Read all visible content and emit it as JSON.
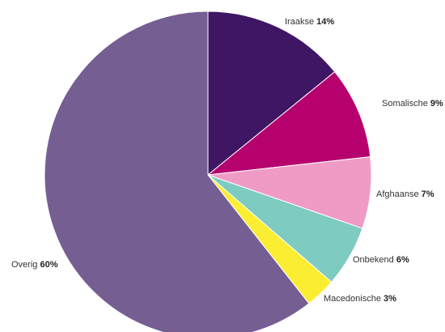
{
  "chart_data": {
    "type": "pie",
    "title": "",
    "start": "top",
    "direction": "clockwise",
    "legend": "none",
    "slices": [
      {
        "label": "Iraakse",
        "value": 14,
        "value_label": "14%",
        "color": "#3f1663"
      },
      {
        "label": "Somalische",
        "value": 9,
        "value_label": "9%",
        "color": "#b5006e"
      },
      {
        "label": "Afghaanse",
        "value": 7,
        "value_label": "7%",
        "color": "#f09bc5"
      },
      {
        "label": "Onbekend",
        "value": 6,
        "value_label": "6%",
        "color": "#7dcbc1"
      },
      {
        "label": "Macedonische",
        "value": 3,
        "value_label": "3%",
        "color": "#fbed32"
      },
      {
        "label": "Overig",
        "value": 60,
        "value_label": "60%",
        "color": "#745e92"
      }
    ]
  }
}
